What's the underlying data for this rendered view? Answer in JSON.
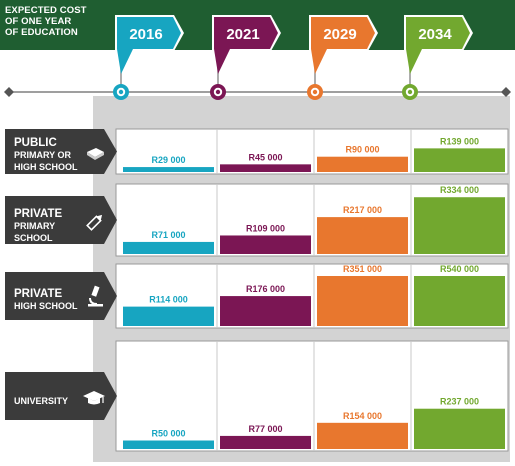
{
  "header": {
    "lines": [
      "EXPECTED COST",
      "OF ONE YEAR",
      "OF EDUCATION"
    ]
  },
  "chart_data": {
    "type": "bar",
    "categories": [
      "2016",
      "2021",
      "2029",
      "2034"
    ],
    "groups": [
      {
        "label_lines": [
          "PUBLIC",
          "PRIMARY OR",
          "HIGH SCHOOL"
        ],
        "icon": "book-icon",
        "values": [
          29000,
          45000,
          90000,
          139000
        ],
        "value_labels": [
          "R29 000",
          "R45 000",
          "R90 000",
          "R139 000"
        ]
      },
      {
        "label_lines": [
          "PRIVATE",
          "PRIMARY",
          "SCHOOL"
        ],
        "icon": "pencil-icon",
        "values": [
          71000,
          109000,
          217000,
          334000
        ],
        "value_labels": [
          "R71 000",
          "R109 000",
          "R217 000",
          "R334 000"
        ]
      },
      {
        "label_lines": [
          "PRIVATE",
          "HIGH SCHOOL"
        ],
        "icon": "microscope-icon",
        "values": [
          114000,
          176000,
          351000,
          540000
        ],
        "value_labels": [
          "R114 000",
          "R176 000",
          "R351 000",
          "R540 000"
        ]
      },
      {
        "label_lines": [
          "UNIVERSITY"
        ],
        "icon": "graduation-cap-icon",
        "values": [
          50000,
          77000,
          154000,
          237000
        ],
        "value_labels": [
          "R50 000",
          "R77 000",
          "R154 000",
          "R237 000"
        ]
      }
    ],
    "colors": [
      "#17a5c1",
      "#7b1654",
      "#e8772e",
      "#72a82f"
    ],
    "header_color": "#1f5e31",
    "label_color": "#333333"
  }
}
